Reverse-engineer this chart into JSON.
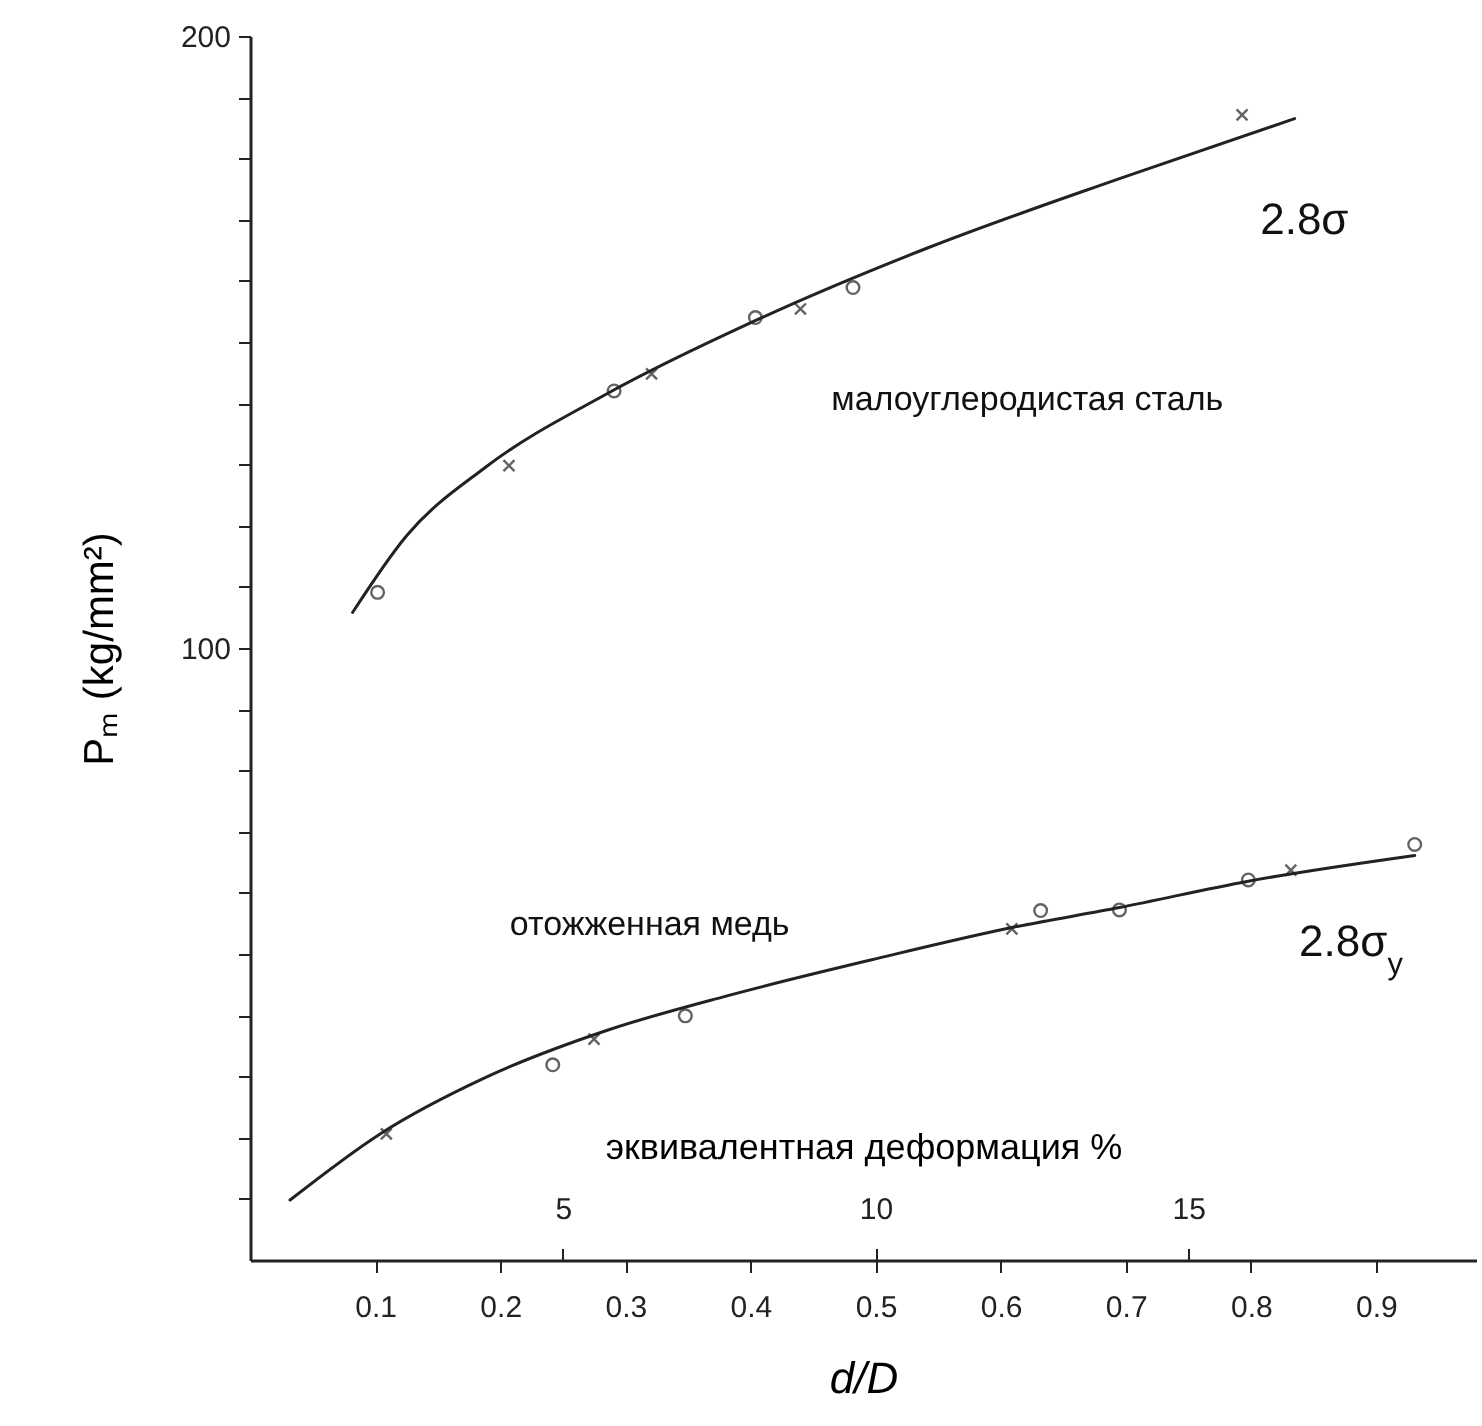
{
  "chart_data": {
    "type": "line",
    "xlabel": "d/D",
    "ylabel": "Pₘ (kg/mm²)",
    "x2label": "эквивалентная деформация %",
    "xlim": [
      0,
      0.98
    ],
    "xticks": [
      0.1,
      0.2,
      0.3,
      0.4,
      0.5,
      0.6,
      0.7,
      0.8,
      0.9
    ],
    "ylim": [
      0,
      200
    ],
    "yticks": [
      {
        "value": 10,
        "label": null
      },
      {
        "value": 20,
        "label": null
      },
      {
        "value": 30,
        "label": null
      },
      {
        "value": 40,
        "label": null
      },
      {
        "value": 50,
        "label": null
      },
      {
        "value": 60,
        "label": null
      },
      {
        "value": 70,
        "label": null
      },
      {
        "value": 80,
        "label": null
      },
      {
        "value": 90,
        "label": null
      },
      100,
      {
        "value": 110,
        "label": null
      },
      {
        "value": 120,
        "label": null
      },
      {
        "value": 130,
        "label": null
      },
      {
        "value": 140,
        "label": null
      },
      {
        "value": 150,
        "label": null
      },
      {
        "value": 160,
        "label": null
      },
      {
        "value": 170,
        "label": null
      },
      {
        "value": 180,
        "label": null
      },
      {
        "value": 190,
        "label": null
      },
      200
    ],
    "x2lim": [
      0,
      19.6
    ],
    "x2ticks": [
      5,
      10,
      15
    ],
    "series": [
      {
        "color": "#222222",
        "line_style": "solid",
        "x": [
          0.082,
          0.125,
          0.188,
          0.285,
          0.403,
          0.542,
          0.695,
          0.835
        ],
        "values": [
          105.8,
          118.3,
          129.5,
          141.5,
          153.4,
          165.4,
          176.7,
          186.5
        ]
      },
      {
        "type": "scatter",
        "marker": "circle",
        "color": "#222222",
        "x": [
          0.102,
          0.291,
          0.404,
          0.482
        ],
        "values": [
          109.1,
          142.0,
          154.0,
          158.9
        ]
      },
      {
        "type": "scatter",
        "marker": "cross",
        "color": "#222222",
        "x": [
          0.207,
          0.321,
          0.44,
          0.793
        ],
        "values": [
          129.8,
          144.8,
          155.4,
          187.1
        ]
      },
      {
        "color": "#222222",
        "line_style": "solid",
        "x": [
          0.032,
          0.104,
          0.188,
          0.285,
          0.382,
          0.5,
          0.611,
          0.695,
          0.798,
          0.931
        ],
        "values": [
          9.8,
          20.6,
          29.8,
          37.5,
          43.2,
          49.2,
          54.4,
          57.6,
          61.9,
          66.1
        ]
      },
      {
        "type": "scatter",
        "marker": "circle",
        "color": "#222222",
        "x": [
          0.242,
          0.348,
          0.632,
          0.695,
          0.798,
          0.931
        ],
        "values": [
          31.9,
          39.9,
          57.1,
          57.2,
          62.1,
          67.9
        ]
      },
      {
        "type": "scatter",
        "marker": "cross",
        "color": "#222222",
        "x": [
          0.109,
          0.275,
          0.609,
          0.832
        ],
        "values": [
          20.6,
          36.1,
          54.1,
          63.7
        ]
      }
    ],
    "annotations": [
      "малоуглеродистая сталь",
      "отожженная медь",
      "2.8σ",
      "2.8σ$_{y}$"
    ]
  }
}
